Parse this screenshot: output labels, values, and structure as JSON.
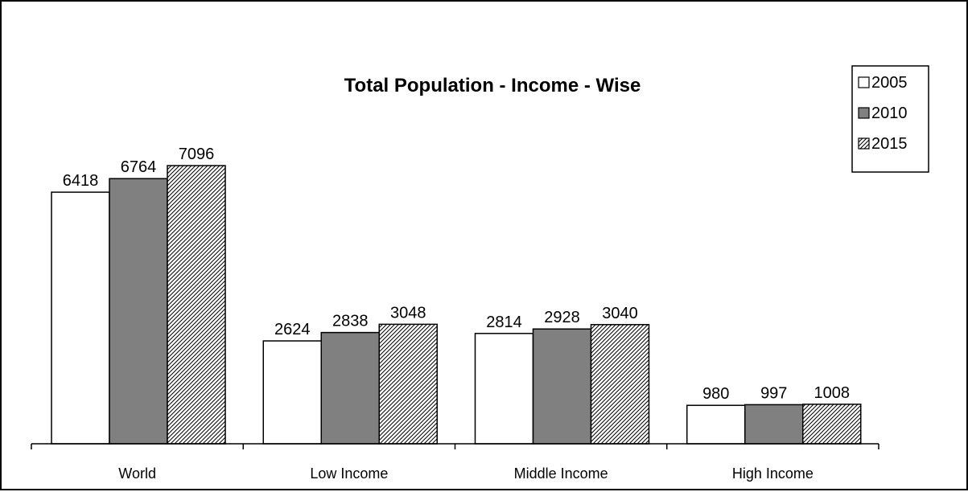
{
  "chart_data": {
    "type": "bar",
    "title": "Total Population - Income - Wise",
    "xlabel": "",
    "ylabel": "",
    "categories": [
      "World",
      "Low Income",
      "Middle Income",
      "High Income"
    ],
    "series": [
      {
        "name": "2005",
        "values": [
          6418,
          2624,
          2814,
          980
        ],
        "fill": "#ffffff",
        "pattern": "none"
      },
      {
        "name": "2010",
        "values": [
          6764,
          2838,
          2928,
          997
        ],
        "fill": "#808080",
        "pattern": "none"
      },
      {
        "name": "2015",
        "values": [
          7096,
          3048,
          3040,
          1008
        ],
        "fill": "#ffffff",
        "pattern": "diagonal-hatch"
      }
    ],
    "ylim": [
      0,
      10000
    ],
    "grid": false,
    "legend": "top-right",
    "data_labels": true
  }
}
